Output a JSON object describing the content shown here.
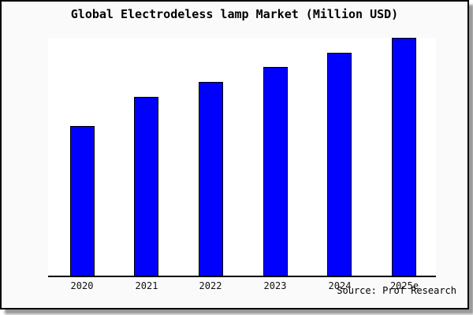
{
  "page": {
    "title": "Global Electrodeless lamp Market (Million USD)",
    "source_label": "Source: Prof Research"
  },
  "chart_data": {
    "type": "bar",
    "title": "Global Electrodeless lamp Market (Million USD)",
    "categories": [
      "2020",
      "2021",
      "2022",
      "2023",
      "2024",
      "2025e"
    ],
    "values": [
      62.9,
      75.2,
      81.5,
      87.7,
      93.7,
      100
    ],
    "value_note": "No y-axis scale or data labels shown; values are relative bar heights with 2025e = 100",
    "xlabel": "",
    "ylabel": "",
    "ylim": [
      0,
      100
    ],
    "grid": false,
    "legend_position": "none",
    "bar_color": "#0000ff",
    "bar_border_color": "#000000",
    "source": "Source: Prof Research"
  },
  "colors": {
    "card_background": "#fafafa",
    "plot_background": "#ffffff",
    "bar_fill": "#0000ff",
    "axis_and_border": "#000000",
    "shadow": "#9a9a9a",
    "text": "#000000"
  }
}
